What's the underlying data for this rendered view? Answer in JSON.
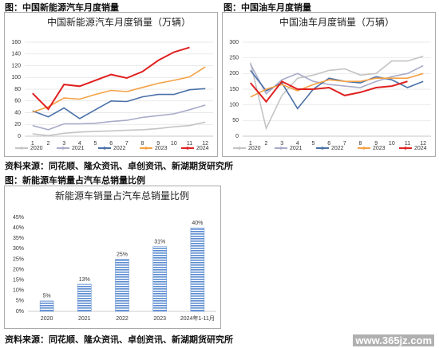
{
  "captions": [
    "图：中国新能源汽车月度销量",
    "图：中国油车月度销量",
    "图：新能源车销量占汽车总销量比例"
  ],
  "sources": [
    "资料来源：同花顺、隆众资讯、卓创资讯、新湖期货研究所",
    "资料来源：同花顺、隆众资讯、卓创资讯、新湖期货研究所"
  ],
  "watermark": "www.365jz.com",
  "chart_data": [
    {
      "type": "line",
      "title": "中国新能源汽车月度销量（万辆）",
      "categories": [
        "1",
        "2",
        "3",
        "4",
        "5",
        "6",
        "7",
        "8",
        "9",
        "10",
        "11",
        "12"
      ],
      "ylim": [
        0,
        160
      ],
      "yticks": [
        0,
        20,
        40,
        60,
        80,
        100,
        120,
        140,
        160
      ],
      "grid": true,
      "series": [
        {
          "name": "2020",
          "color": "#c4c4c4",
          "values": [
            4,
            1,
            5,
            7,
            8,
            9,
            10,
            11,
            13,
            16,
            18,
            24
          ]
        },
        {
          "name": "2021",
          "color": "#a9abc9",
          "values": [
            18,
            11,
            21,
            21,
            22,
            25,
            27,
            32,
            35,
            38,
            45,
            53
          ]
        },
        {
          "name": "2022",
          "color": "#4a70a8",
          "values": [
            43,
            33,
            48,
            30,
            45,
            60,
            59,
            67,
            71,
            71,
            79,
            81
          ]
        },
        {
          "name": "2023",
          "color": "#f4a145",
          "values": [
            41,
            50,
            65,
            63,
            71,
            78,
            76,
            83,
            90,
            95,
            101,
            118
          ]
        },
        {
          "name": "2024",
          "color": "#e02020",
          "values": [
            73,
            46,
            88,
            85,
            95,
            105,
            99,
            110,
            129,
            143,
            151,
            null
          ]
        }
      ]
    },
    {
      "type": "line",
      "title": "中国油车月度销量（万辆）",
      "categories": [
        "1",
        "2",
        "3",
        "4",
        "5",
        "6",
        "7",
        "8",
        "9",
        "10",
        "11",
        "12"
      ],
      "ylim": [
        0,
        300
      ],
      "yticks": [
        0,
        50,
        100,
        150,
        200,
        250,
        300
      ],
      "grid": true,
      "series": [
        {
          "name": "2020",
          "color": "#c4c4c4",
          "values": [
            235,
            25,
            130,
            185,
            195,
            210,
            215,
            195,
            200,
            240,
            240,
            255
          ]
        },
        {
          "name": "2021",
          "color": "#a9abc9",
          "values": [
            230,
            135,
            180,
            200,
            175,
            165,
            160,
            155,
            175,
            190,
            200,
            225
          ]
        },
        {
          "name": "2022",
          "color": "#4a70a8",
          "values": [
            210,
            145,
            170,
            88,
            150,
            185,
            175,
            170,
            190,
            180,
            155,
            175
          ]
        },
        {
          "name": "2023",
          "color": "#f4a145",
          "values": [
            125,
            150,
            165,
            145,
            165,
            180,
            175,
            175,
            185,
            185,
            185,
            200
          ]
        },
        {
          "name": "2024",
          "color": "#e02020",
          "values": [
            170,
            110,
            175,
            150,
            150,
            155,
            130,
            140,
            155,
            160,
            175,
            null
          ]
        }
      ]
    },
    {
      "type": "bar",
      "title": "新能源车销量占汽车总销量比例",
      "categories": [
        "2020",
        "2021",
        "2022",
        "2023",
        "2024年1-11月"
      ],
      "values": [
        5,
        13,
        25,
        31,
        40
      ],
      "value_labels": [
        "5%",
        "13%",
        "25%",
        "31%",
        "40%"
      ],
      "color": "#5b8bd0",
      "ylim": [
        0,
        45
      ],
      "yticks": [
        {
          "value": 0,
          "label": "0%"
        },
        {
          "value": 5,
          "label": "5%"
        },
        {
          "value": 10,
          "label": "10%"
        },
        {
          "value": 15,
          "label": "15%"
        },
        {
          "value": 20,
          "label": "20%"
        },
        {
          "value": 25,
          "label": "25%"
        },
        {
          "value": 30,
          "label": "30%"
        },
        {
          "value": 35,
          "label": "35%"
        },
        {
          "value": 40,
          "label": "40%"
        },
        {
          "value": 45,
          "label": "45%"
        }
      ],
      "grid": false
    }
  ]
}
